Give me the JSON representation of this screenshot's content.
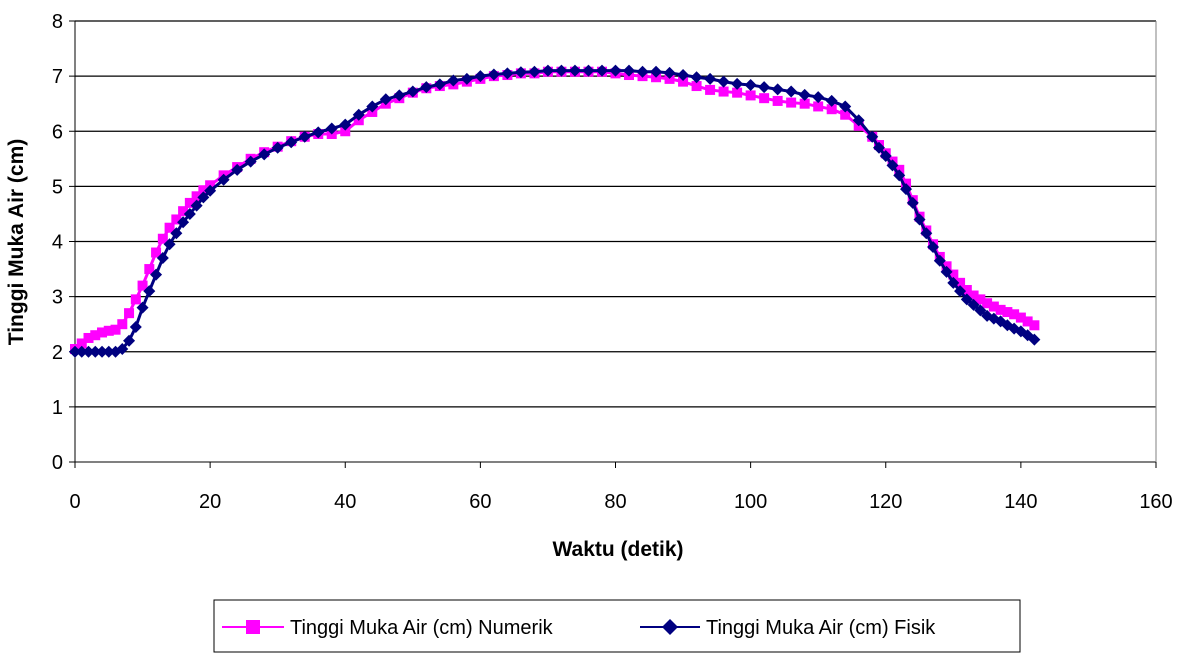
{
  "chart_data": {
    "type": "scatter",
    "xlabel": "Waktu (detik)",
    "ylabel": "Tinggi Muka Air (cm)",
    "xlim": [
      0,
      160
    ],
    "ylim": [
      0,
      8
    ],
    "xticks": [
      0,
      20,
      40,
      60,
      80,
      100,
      120,
      140,
      160
    ],
    "yticks": [
      0,
      1,
      2,
      3,
      4,
      5,
      6,
      7,
      8
    ],
    "grid": "horizontal major gridlines",
    "legend": "bottom",
    "series": [
      {
        "name": "Tinggi Muka Air (cm) Numerik",
        "color": "#ff00ff",
        "marker": "square",
        "x": [
          0,
          1,
          2,
          3,
          4,
          5,
          6,
          7,
          8,
          9,
          10,
          11,
          12,
          13,
          14,
          15,
          16,
          17,
          18,
          19,
          20,
          22,
          24,
          26,
          28,
          30,
          32,
          34,
          36,
          38,
          40,
          42,
          44,
          46,
          48,
          50,
          52,
          54,
          56,
          58,
          60,
          62,
          64,
          66,
          68,
          70,
          72,
          74,
          76,
          78,
          80,
          82,
          84,
          86,
          88,
          90,
          92,
          94,
          96,
          98,
          100,
          102,
          104,
          106,
          108,
          110,
          112,
          114,
          116,
          118,
          119,
          120,
          121,
          122,
          123,
          124,
          125,
          126,
          127,
          128,
          129,
          130,
          131,
          132,
          133,
          134,
          135,
          136,
          137,
          138,
          139,
          140,
          141,
          142
        ],
        "y": [
          2.05,
          2.15,
          2.25,
          2.3,
          2.35,
          2.38,
          2.4,
          2.5,
          2.7,
          2.95,
          3.2,
          3.5,
          3.8,
          4.05,
          4.25,
          4.4,
          4.55,
          4.7,
          4.82,
          4.93,
          5.02,
          5.2,
          5.35,
          5.5,
          5.62,
          5.72,
          5.82,
          5.9,
          5.95,
          5.95,
          6.0,
          6.2,
          6.35,
          6.5,
          6.6,
          6.7,
          6.78,
          6.82,
          6.85,
          6.9,
          6.95,
          7.0,
          7.02,
          7.05,
          7.05,
          7.08,
          7.08,
          7.08,
          7.08,
          7.08,
          7.05,
          7.02,
          7.0,
          6.98,
          6.95,
          6.9,
          6.82,
          6.75,
          6.72,
          6.7,
          6.65,
          6.6,
          6.55,
          6.52,
          6.5,
          6.45,
          6.4,
          6.3,
          6.1,
          5.9,
          5.75,
          5.6,
          5.45,
          5.3,
          5.05,
          4.75,
          4.45,
          4.2,
          3.95,
          3.72,
          3.55,
          3.4,
          3.25,
          3.12,
          3.02,
          2.95,
          2.88,
          2.82,
          2.76,
          2.72,
          2.68,
          2.62,
          2.55,
          2.48
        ]
      },
      {
        "name": "Tinggi Muka Air (cm) Fisik",
        "color": "#000080",
        "marker": "diamond",
        "x": [
          0,
          1,
          2,
          3,
          4,
          5,
          6,
          7,
          8,
          9,
          10,
          11,
          12,
          13,
          14,
          15,
          16,
          17,
          18,
          19,
          20,
          22,
          24,
          26,
          28,
          30,
          32,
          34,
          36,
          38,
          40,
          42,
          44,
          46,
          48,
          50,
          52,
          54,
          56,
          58,
          60,
          62,
          64,
          66,
          68,
          70,
          72,
          74,
          76,
          78,
          80,
          82,
          84,
          86,
          88,
          90,
          92,
          94,
          96,
          98,
          100,
          102,
          104,
          106,
          108,
          110,
          112,
          114,
          116,
          118,
          119,
          120,
          121,
          122,
          123,
          124,
          125,
          126,
          127,
          128,
          129,
          130,
          131,
          132,
          133,
          134,
          135,
          136,
          137,
          138,
          139,
          140,
          141,
          142
        ],
        "y": [
          2.0,
          2.0,
          2.0,
          2.0,
          2.0,
          2.0,
          2.0,
          2.05,
          2.2,
          2.45,
          2.8,
          3.1,
          3.4,
          3.7,
          3.95,
          4.15,
          4.35,
          4.5,
          4.65,
          4.8,
          4.92,
          5.12,
          5.3,
          5.45,
          5.58,
          5.7,
          5.8,
          5.9,
          5.98,
          6.05,
          6.12,
          6.3,
          6.45,
          6.58,
          6.65,
          6.72,
          6.8,
          6.85,
          6.92,
          6.95,
          7.0,
          7.03,
          7.05,
          7.07,
          7.08,
          7.1,
          7.1,
          7.1,
          7.1,
          7.1,
          7.1,
          7.1,
          7.08,
          7.08,
          7.06,
          7.02,
          6.98,
          6.95,
          6.9,
          6.86,
          6.84,
          6.8,
          6.76,
          6.72,
          6.66,
          6.62,
          6.55,
          6.45,
          6.2,
          5.9,
          5.7,
          5.55,
          5.38,
          5.2,
          4.95,
          4.7,
          4.4,
          4.15,
          3.9,
          3.65,
          3.45,
          3.25,
          3.1,
          2.95,
          2.85,
          2.75,
          2.65,
          2.6,
          2.55,
          2.48,
          2.42,
          2.37,
          2.3,
          2.22
        ]
      }
    ]
  }
}
